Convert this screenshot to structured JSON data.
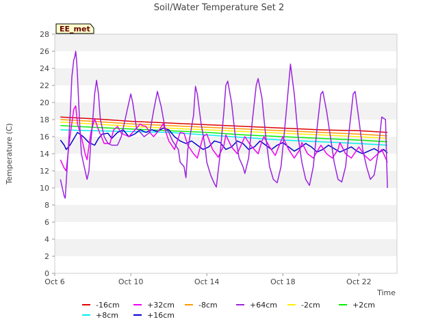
{
  "chart_data": {
    "type": "line",
    "title": "Soil/Water Temperature Set 2",
    "xlabel": "Time",
    "ylabel": "Temperature (C)",
    "site_badge": "EE_met",
    "ylim": [
      0,
      28
    ],
    "yticks": [
      0,
      2,
      4,
      6,
      8,
      10,
      12,
      14,
      16,
      18,
      20,
      22,
      24,
      26,
      28
    ],
    "xlim_days": [
      6,
      24
    ],
    "xticks": [
      {
        "day": 6,
        "label": "Oct 6"
      },
      {
        "day": 10,
        "label": "Oct 10"
      },
      {
        "day": 14,
        "label": "Oct 14"
      },
      {
        "day": 18,
        "label": "Oct 18"
      },
      {
        "day": 22,
        "label": "Oct 22"
      }
    ],
    "grid": "horizontal bands",
    "legend_position": "bottom",
    "series": [
      {
        "name": "-16cm",
        "color": "#dd0000",
        "day_start": 6.3,
        "day_end": 23.5,
        "points": [
          [
            6.3,
            18.3
          ],
          [
            8,
            18.1
          ],
          [
            10,
            17.8
          ],
          [
            12,
            17.6
          ],
          [
            14,
            17.4
          ],
          [
            16,
            17.2
          ],
          [
            18,
            17.0
          ],
          [
            20,
            16.8
          ],
          [
            22,
            16.7
          ],
          [
            23.5,
            16.5
          ]
        ]
      },
      {
        "name": "+32cm",
        "color": "#ee00ee",
        "day_start": 6.3,
        "day_end": 23.5,
        "points": [
          [
            6.3,
            13.3
          ],
          [
            6.5,
            12.3
          ],
          [
            6.6,
            12.0
          ],
          [
            6.8,
            16.0
          ],
          [
            7.0,
            19.2
          ],
          [
            7.1,
            19.6
          ],
          [
            7.2,
            17.5
          ],
          [
            7.4,
            16.0
          ],
          [
            7.6,
            14.0
          ],
          [
            7.7,
            13.3
          ],
          [
            7.9,
            16.5
          ],
          [
            8.1,
            18.1
          ],
          [
            8.3,
            16.8
          ],
          [
            8.6,
            15.2
          ],
          [
            8.9,
            15.2
          ],
          [
            9.1,
            16.8
          ],
          [
            9.3,
            17.2
          ],
          [
            9.5,
            16.4
          ],
          [
            9.7,
            16.2
          ],
          [
            9.9,
            16.0
          ],
          [
            10.1,
            16.5
          ],
          [
            10.3,
            17.0
          ],
          [
            10.5,
            17.5
          ],
          [
            10.6,
            17.3
          ],
          [
            10.8,
            17.2
          ],
          [
            11.0,
            16.5
          ],
          [
            11.2,
            16.0
          ],
          [
            11.5,
            16.8
          ],
          [
            11.7,
            17.5
          ],
          [
            12.0,
            15.5
          ],
          [
            12.3,
            14.5
          ],
          [
            12.6,
            16.5
          ],
          [
            12.8,
            16.4
          ],
          [
            13.0,
            15.0
          ],
          [
            13.3,
            14.0
          ],
          [
            13.5,
            13.5
          ],
          [
            13.8,
            16.0
          ],
          [
            14.0,
            16.3
          ],
          [
            14.3,
            14.5
          ],
          [
            14.6,
            13.6
          ],
          [
            14.9,
            15.0
          ],
          [
            15.0,
            16.2
          ],
          [
            15.3,
            14.8
          ],
          [
            15.6,
            14.0
          ],
          [
            15.9,
            15.5
          ],
          [
            16.0,
            16.0
          ],
          [
            16.3,
            15.0
          ],
          [
            16.7,
            14.0
          ],
          [
            16.9,
            15.5
          ],
          [
            17.0,
            16.0
          ],
          [
            17.3,
            14.8
          ],
          [
            17.6,
            13.8
          ],
          [
            17.9,
            15.5
          ],
          [
            18.0,
            16.0
          ],
          [
            18.3,
            14.5
          ],
          [
            18.6,
            13.5
          ],
          [
            18.9,
            14.5
          ],
          [
            19.0,
            15.3
          ],
          [
            19.3,
            14.0
          ],
          [
            19.6,
            13.5
          ],
          [
            20.0,
            15.0
          ],
          [
            20.3,
            14.0
          ],
          [
            20.6,
            13.5
          ],
          [
            20.9,
            14.5
          ],
          [
            21.0,
            15.3
          ],
          [
            21.3,
            14.0
          ],
          [
            21.6,
            13.5
          ],
          [
            22.0,
            14.8
          ],
          [
            22.3,
            13.8
          ],
          [
            22.6,
            13.2
          ],
          [
            23.0,
            14.0
          ],
          [
            23.2,
            14.5
          ],
          [
            23.5,
            13.0
          ]
        ]
      },
      {
        "name": "-8cm",
        "color": "#ff9900",
        "day_start": 6.3,
        "day_end": 23.5,
        "points": [
          [
            6.3,
            18.0
          ],
          [
            8,
            17.8
          ],
          [
            10,
            17.5
          ],
          [
            12,
            17.3
          ],
          [
            14,
            17.1
          ],
          [
            16,
            16.9
          ],
          [
            18,
            16.7
          ],
          [
            20,
            16.5
          ],
          [
            22,
            16.3
          ],
          [
            23.5,
            16.1
          ]
        ]
      },
      {
        "name": "+64cm",
        "color": "#9922dd",
        "day_start": 6.3,
        "day_end": 23.5,
        "points": [
          [
            6.3,
            11.0
          ],
          [
            6.4,
            10.0
          ],
          [
            6.5,
            9.0
          ],
          [
            6.55,
            8.8
          ],
          [
            6.7,
            14.0
          ],
          [
            6.8,
            18.0
          ],
          [
            6.9,
            23.0
          ],
          [
            7.0,
            25.0
          ],
          [
            7.05,
            25.3
          ],
          [
            7.1,
            26.0
          ],
          [
            7.15,
            25.0
          ],
          [
            7.2,
            23.0
          ],
          [
            7.3,
            18.0
          ],
          [
            7.4,
            14.0
          ],
          [
            7.5,
            13.0
          ],
          [
            7.6,
            12.0
          ],
          [
            7.7,
            11.0
          ],
          [
            7.8,
            12.0
          ],
          [
            7.9,
            15.5
          ],
          [
            8.0,
            18.0
          ],
          [
            8.1,
            21.0
          ],
          [
            8.2,
            22.6
          ],
          [
            8.3,
            21.0
          ],
          [
            8.4,
            18.0
          ],
          [
            8.6,
            16.0
          ],
          [
            8.8,
            15.2
          ],
          [
            9.0,
            15.0
          ],
          [
            9.3,
            15.0
          ],
          [
            9.5,
            16.0
          ],
          [
            9.7,
            18.0
          ],
          [
            9.9,
            20.0
          ],
          [
            10.0,
            21.0
          ],
          [
            10.1,
            20.0
          ],
          [
            10.3,
            17.0
          ],
          [
            10.5,
            16.5
          ],
          [
            10.7,
            16.0
          ],
          [
            11.0,
            16.5
          ],
          [
            11.2,
            19.0
          ],
          [
            11.4,
            21.3
          ],
          [
            11.6,
            19.5
          ],
          [
            11.8,
            17.0
          ],
          [
            12.0,
            16.5
          ],
          [
            12.2,
            15.5
          ],
          [
            12.5,
            14.5
          ],
          [
            12.6,
            13.0
          ],
          [
            12.8,
            12.5
          ],
          [
            12.9,
            11.2
          ],
          [
            13.0,
            14.5
          ],
          [
            13.3,
            18.5
          ],
          [
            13.4,
            21.9
          ],
          [
            13.5,
            21.0
          ],
          [
            13.7,
            17.5
          ],
          [
            13.9,
            15.0
          ],
          [
            14.0,
            13.0
          ],
          [
            14.2,
            11.5
          ],
          [
            14.4,
            10.5
          ],
          [
            14.5,
            10.1
          ],
          [
            14.7,
            14.0
          ],
          [
            14.9,
            19.0
          ],
          [
            15.0,
            22.0
          ],
          [
            15.1,
            22.5
          ],
          [
            15.3,
            20.0
          ],
          [
            15.5,
            16.0
          ],
          [
            15.7,
            13.5
          ],
          [
            15.9,
            12.5
          ],
          [
            16.0,
            11.7
          ],
          [
            16.2,
            13.5
          ],
          [
            16.4,
            18.0
          ],
          [
            16.6,
            22.0
          ],
          [
            16.7,
            22.8
          ],
          [
            16.9,
            20.5
          ],
          [
            17.1,
            16.0
          ],
          [
            17.3,
            12.5
          ],
          [
            17.5,
            11.0
          ],
          [
            17.7,
            10.6
          ],
          [
            17.9,
            12.5
          ],
          [
            18.1,
            17.0
          ],
          [
            18.3,
            22.0
          ],
          [
            18.4,
            24.5
          ],
          [
            18.6,
            21.0
          ],
          [
            18.8,
            16.0
          ],
          [
            19.0,
            13.0
          ],
          [
            19.2,
            11.0
          ],
          [
            19.4,
            10.3
          ],
          [
            19.6,
            12.5
          ],
          [
            19.8,
            17.0
          ],
          [
            20.0,
            21.0
          ],
          [
            20.1,
            21.3
          ],
          [
            20.3,
            19.0
          ],
          [
            20.5,
            16.0
          ],
          [
            20.7,
            13.0
          ],
          [
            20.9,
            11.0
          ],
          [
            21.1,
            10.7
          ],
          [
            21.3,
            12.5
          ],
          [
            21.5,
            17.0
          ],
          [
            21.7,
            21.0
          ],
          [
            21.8,
            21.3
          ],
          [
            22.0,
            18.0
          ],
          [
            22.2,
            14.5
          ],
          [
            22.4,
            12.5
          ],
          [
            22.6,
            11.0
          ],
          [
            22.8,
            11.5
          ],
          [
            23.0,
            14.0
          ],
          [
            23.2,
            18.3
          ],
          [
            23.4,
            18.0
          ],
          [
            23.5,
            10.0
          ]
        ]
      },
      {
        "name": "-2cm",
        "color": "#ffee00",
        "day_start": 6.3,
        "day_end": 23.5,
        "points": [
          [
            6.3,
            17.7
          ],
          [
            8,
            17.5
          ],
          [
            10,
            17.2
          ],
          [
            12,
            17.0
          ],
          [
            14,
            16.8
          ],
          [
            16,
            16.6
          ],
          [
            18,
            16.4
          ],
          [
            20,
            16.2
          ],
          [
            22,
            16.0
          ],
          [
            23.5,
            15.8
          ]
        ]
      },
      {
        "name": "+2cm",
        "color": "#00ee00",
        "day_start": 6.3,
        "day_end": 23.5,
        "points": [
          [
            6.3,
            17.3
          ],
          [
            8,
            17.1
          ],
          [
            10,
            16.9
          ],
          [
            12,
            16.7
          ],
          [
            14,
            16.5
          ],
          [
            16,
            16.2
          ],
          [
            18,
            16.0
          ],
          [
            20,
            15.8
          ],
          [
            22,
            15.6
          ],
          [
            23.5,
            15.4
          ]
        ]
      },
      {
        "name": "+8cm",
        "color": "#00eeee",
        "day_start": 6.3,
        "day_end": 23.5,
        "points": [
          [
            6.3,
            16.8
          ],
          [
            8,
            16.7
          ],
          [
            10,
            16.6
          ],
          [
            12,
            16.5
          ],
          [
            14,
            16.2
          ],
          [
            16,
            15.9
          ],
          [
            18,
            15.6
          ],
          [
            20,
            15.4
          ],
          [
            22,
            15.2
          ],
          [
            23.5,
            15.0
          ]
        ]
      },
      {
        "name": "+16cm",
        "color": "#0000cc",
        "day_start": 6.3,
        "day_end": 23.5,
        "points": [
          [
            6.3,
            15.6
          ],
          [
            6.5,
            15.0
          ],
          [
            6.6,
            14.5
          ],
          [
            6.8,
            15.0
          ],
          [
            7.2,
            16.5
          ],
          [
            7.5,
            16.0
          ],
          [
            7.8,
            15.3
          ],
          [
            8.1,
            15.0
          ],
          [
            8.3,
            15.8
          ],
          [
            8.5,
            16.3
          ],
          [
            8.8,
            16.4
          ],
          [
            9.0,
            15.8
          ],
          [
            9.3,
            16.5
          ],
          [
            9.6,
            16.8
          ],
          [
            9.9,
            16.0
          ],
          [
            10.2,
            16.3
          ],
          [
            10.5,
            16.8
          ],
          [
            10.8,
            16.5
          ],
          [
            11.1,
            16.8
          ],
          [
            11.4,
            16.6
          ],
          [
            11.7,
            17.0
          ],
          [
            12.0,
            16.8
          ],
          [
            12.3,
            16.0
          ],
          [
            12.6,
            15.5
          ],
          [
            12.9,
            15.2
          ],
          [
            13.2,
            15.5
          ],
          [
            13.5,
            15.0
          ],
          [
            13.8,
            14.5
          ],
          [
            14.1,
            14.8
          ],
          [
            14.4,
            15.5
          ],
          [
            14.7,
            15.3
          ],
          [
            15.0,
            14.5
          ],
          [
            15.3,
            14.8
          ],
          [
            15.6,
            15.5
          ],
          [
            15.9,
            15.2
          ],
          [
            16.2,
            14.5
          ],
          [
            16.5,
            14.8
          ],
          [
            16.8,
            15.5
          ],
          [
            17.1,
            15.0
          ],
          [
            17.4,
            14.5
          ],
          [
            17.7,
            15.0
          ],
          [
            18.0,
            15.3
          ],
          [
            18.3,
            14.8
          ],
          [
            18.6,
            14.3
          ],
          [
            18.9,
            14.7
          ],
          [
            19.2,
            15.2
          ],
          [
            19.5,
            14.8
          ],
          [
            19.8,
            14.2
          ],
          [
            20.1,
            14.5
          ],
          [
            20.4,
            15.0
          ],
          [
            20.7,
            14.6
          ],
          [
            21.0,
            14.2
          ],
          [
            21.3,
            14.5
          ],
          [
            21.6,
            14.8
          ],
          [
            21.9,
            14.3
          ],
          [
            22.2,
            14.0
          ],
          [
            22.5,
            14.3
          ],
          [
            22.8,
            14.6
          ],
          [
            23.1,
            14.2
          ],
          [
            23.3,
            14.5
          ],
          [
            23.5,
            14.1
          ]
        ]
      }
    ]
  }
}
